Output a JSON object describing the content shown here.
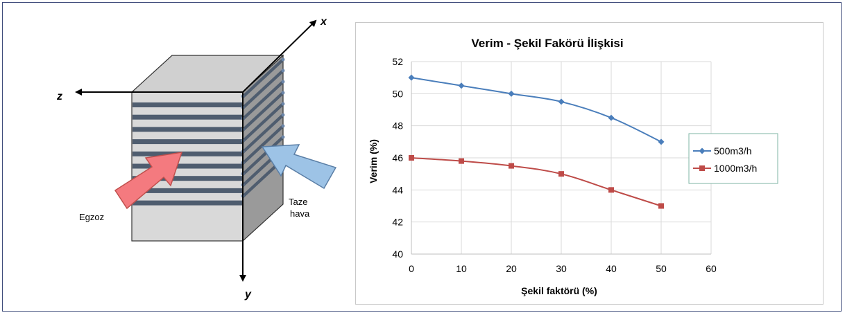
{
  "diagram": {
    "axis_x": "x",
    "axis_y": "y",
    "axis_z": "z",
    "label_exhaust": "Egzoz",
    "label_fresh_line1": "Taze",
    "label_fresh_line2": "hava",
    "colors": {
      "exhaust_arrow": "#f47a7f",
      "fresh_arrow": "#9dc3e6",
      "block_face": "#d9d9d9",
      "stripe": "#4f5d6f"
    }
  },
  "chart_data": {
    "type": "line",
    "title": "Verim - Şekil Fakörü İlişkisi",
    "xlabel": "Şekil faktörü  (%)",
    "ylabel": "Verim  (%)",
    "xlim": [
      0,
      60
    ],
    "ylim": [
      40,
      52
    ],
    "x_ticks": [
      "0",
      "10",
      "20",
      "30",
      "40",
      "50",
      "60"
    ],
    "y_ticks": [
      "40",
      "42",
      "44",
      "46",
      "48",
      "50",
      "52"
    ],
    "grid": true,
    "legend_position": "right",
    "x": [
      0,
      10,
      20,
      30,
      40,
      50
    ],
    "series": [
      {
        "name": "500m3/h",
        "values": [
          51,
          50.5,
          50,
          49.5,
          48.5,
          47
        ],
        "color": "#4a7ebb",
        "marker": "diamond"
      },
      {
        "name": "1000m3/h",
        "values": [
          46,
          45.8,
          45.5,
          45,
          44,
          43
        ],
        "color": "#be4b48",
        "marker": "square"
      }
    ]
  }
}
